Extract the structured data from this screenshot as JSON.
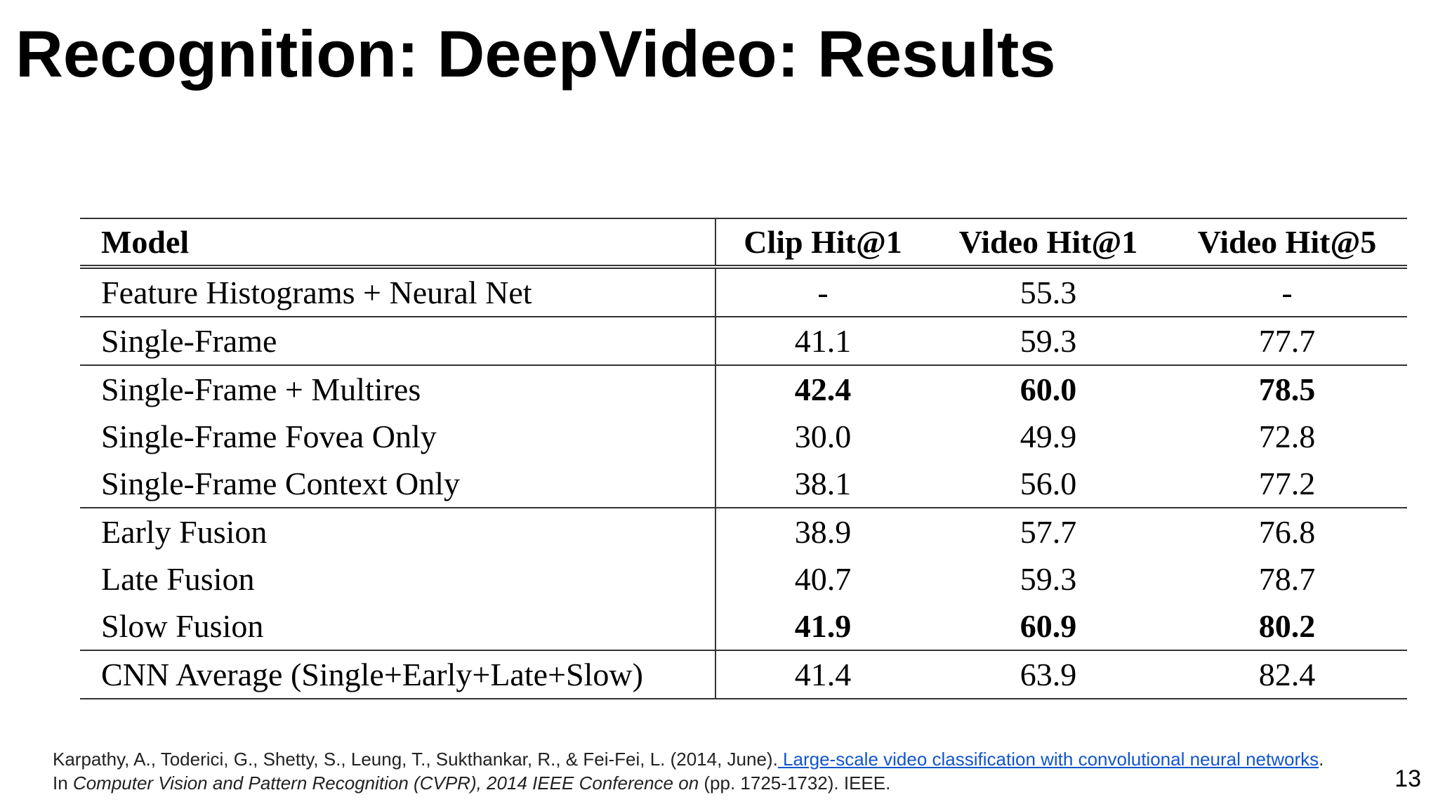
{
  "slide": {
    "title": "Recognition: DeepVideo: Results",
    "page_number": "13"
  },
  "table": {
    "headers": [
      "Model",
      "Clip Hit@1",
      "Video Hit@1",
      "Video Hit@5"
    ],
    "rows": [
      {
        "model": "Feature Histograms + Neural Net",
        "clip_hit1": "-",
        "video_hit1": "55.3",
        "video_hit5": "-",
        "bold": false
      },
      {
        "model": "Single-Frame",
        "clip_hit1": "41.1",
        "video_hit1": "59.3",
        "video_hit5": "77.7",
        "bold": false
      },
      {
        "model": "Single-Frame + Multires",
        "clip_hit1": "42.4",
        "video_hit1": "60.0",
        "video_hit5": "78.5",
        "bold": true
      },
      {
        "model": "Single-Frame Fovea Only",
        "clip_hit1": "30.0",
        "video_hit1": "49.9",
        "video_hit5": "72.8",
        "bold": false
      },
      {
        "model": "Single-Frame Context Only",
        "clip_hit1": "38.1",
        "video_hit1": "56.0",
        "video_hit5": "77.2",
        "bold": false
      },
      {
        "model": "Early Fusion",
        "clip_hit1": "38.9",
        "video_hit1": "57.7",
        "video_hit5": "76.8",
        "bold": false
      },
      {
        "model": "Late Fusion",
        "clip_hit1": "40.7",
        "video_hit1": "59.3",
        "video_hit5": "78.7",
        "bold": false
      },
      {
        "model": "Slow Fusion",
        "clip_hit1": "41.9",
        "video_hit1": "60.9",
        "video_hit5": "80.2",
        "bold": true
      },
      {
        "model": "CNN Average (Single+Early+Late+Slow)",
        "clip_hit1": "41.4",
        "video_hit1": "63.9",
        "video_hit5": "82.4",
        "bold": false
      }
    ]
  },
  "citation": {
    "authors": "Karpathy, A., Toderici, G., Shetty, S., Leung, T., Sukthankar, R., & Fei-Fei, L. (2014, June).",
    "link_text": " Large-scale video classification with convolutional neural networks",
    "after_link": ". In ",
    "venue": "Computer Vision and Pattern Recognition (CVPR), 2014 IEEE Conference on",
    "pages": " (pp. 1725-1732). IEEE."
  }
}
